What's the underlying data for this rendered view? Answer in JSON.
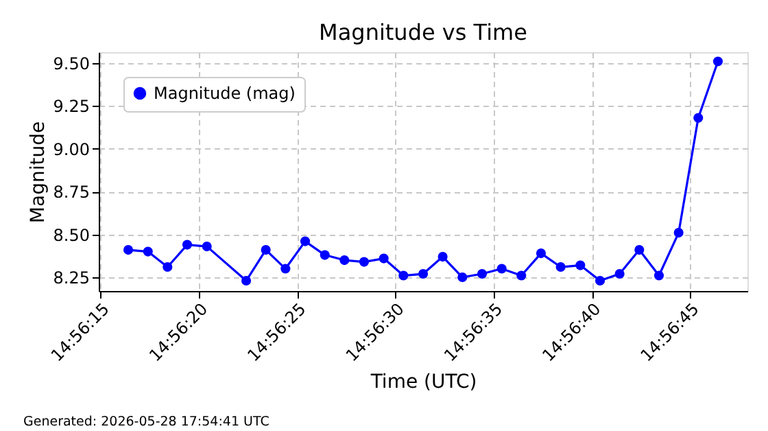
{
  "chart_data": {
    "type": "line",
    "title": "Magnitude vs Time",
    "xlabel": "Time (UTC)",
    "ylabel": "Magnitude",
    "x": [
      14.937889,
      14.938167,
      14.938444,
      14.938722,
      14.939,
      14.939556,
      14.939833,
      14.940111,
      14.940389,
      14.940667,
      14.940944,
      14.941222,
      14.9415,
      14.941778,
      14.942056,
      14.942333,
      14.942611,
      14.942889,
      14.943167,
      14.943444,
      14.943722,
      14.944,
      14.944278,
      14.944556,
      14.944833,
      14.945111,
      14.945389,
      14.945667,
      14.945944,
      14.946222
    ],
    "series": [
      {
        "name": "Magnitude (mag)",
        "color": "#0000ff",
        "values": [
          8.41,
          8.4,
          8.31,
          8.44,
          8.43,
          8.23,
          8.41,
          8.3,
          8.46,
          8.38,
          8.35,
          8.34,
          8.36,
          8.26,
          8.27,
          8.37,
          8.25,
          8.27,
          8.3,
          8.26,
          8.39,
          8.31,
          8.32,
          8.23,
          8.27,
          8.41,
          8.26,
          8.51,
          9.18,
          9.51
        ]
      }
    ],
    "xlim": [
      14.937472,
      14.946639
    ],
    "xticks": [
      {
        "value": 14.9375,
        "label": "14:56:15"
      },
      {
        "value": 14.938889,
        "label": "14:56:20"
      },
      {
        "value": 14.940278,
        "label": "14:56:25"
      },
      {
        "value": 14.941667,
        "label": "14:56:30"
      },
      {
        "value": 14.943056,
        "label": "14:56:35"
      },
      {
        "value": 14.944444,
        "label": "14:56:40"
      },
      {
        "value": 14.945833,
        "label": "14:56:45"
      }
    ],
    "ylim": [
      8.17,
      9.564
    ],
    "yticks": [
      {
        "value": 8.25,
        "label": "8.25"
      },
      {
        "value": 8.5,
        "label": "8.50"
      },
      {
        "value": 8.75,
        "label": "8.75"
      },
      {
        "value": 9.0,
        "label": "9.00"
      },
      {
        "value": 9.25,
        "label": "9.25"
      },
      {
        "value": 9.5,
        "label": "9.50"
      }
    ],
    "grid": true,
    "legend": "top left",
    "marker": "circle",
    "line_style": "solid",
    "annotations": [
      "Generated: 2026-05-28 17:54:41 UTC"
    ]
  }
}
